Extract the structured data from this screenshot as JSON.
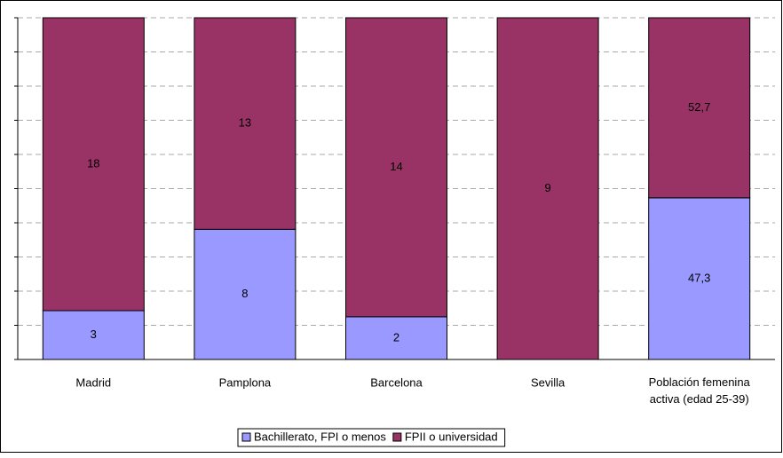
{
  "chart_data": {
    "type": "bar",
    "stacking": "percent",
    "categories": [
      "Madrid",
      "Pamplona",
      "Barcelona",
      "Sevilla",
      "Población femenina activa (edad 25-39)"
    ],
    "series": [
      {
        "name": "Bachillerato, FPI o menos",
        "color": "#9999ff",
        "values": [
          3,
          8,
          2,
          0,
          47.3
        ],
        "value_labels": [
          "3",
          "8",
          "2",
          null,
          "47,3"
        ]
      },
      {
        "name": "FPII o universidad",
        "color": "#993366",
        "values": [
          18,
          13,
          14,
          9,
          52.7
        ],
        "value_labels": [
          "18",
          "13",
          "14",
          "9",
          "52,7"
        ]
      }
    ],
    "ylim": [
      0,
      100
    ],
    "yticks": [
      0,
      10,
      20,
      30,
      40,
      50,
      60,
      70,
      80,
      90,
      100
    ],
    "grid": true,
    "legend": "bottom"
  }
}
